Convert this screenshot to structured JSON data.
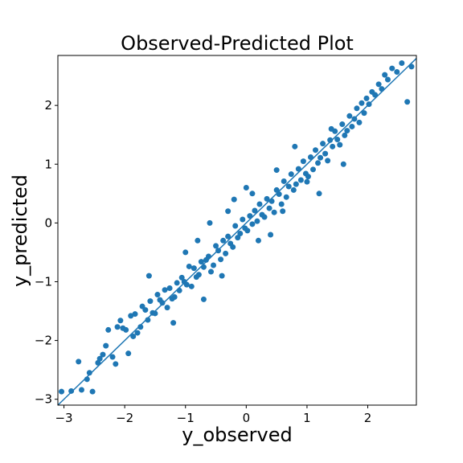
{
  "chart_data": {
    "type": "scatter",
    "title": "Observed-Predicted Plot",
    "xlabel": "y_observed",
    "ylabel": "y_predicted",
    "xlim": [
      -3.1,
      2.8
    ],
    "ylim": [
      -3.1,
      2.85
    ],
    "xticks": [
      -3,
      -2,
      -1,
      0,
      1,
      2
    ],
    "yticks": [
      -3,
      -2,
      -1,
      0,
      1,
      2
    ],
    "xtick_labels": [
      "−3",
      "−2",
      "−1",
      "0",
      "1",
      "2"
    ],
    "ytick_labels": [
      "−3",
      "−2",
      "−1",
      "0",
      "1",
      "2"
    ],
    "grid": false,
    "legend": "none",
    "reference_line": {
      "x": [
        -3.1,
        2.8
      ],
      "y": [
        -3.1,
        2.8
      ]
    },
    "series": [
      {
        "color": "#1f77b4",
        "x": [
          -3.04,
          -2.88,
          -2.76,
          -2.71,
          -2.62,
          -2.58,
          -2.53,
          -2.44,
          -2.41,
          -2.36,
          -2.31,
          -2.27,
          -2.2,
          -2.15,
          -2.12,
          -2.07,
          -2.03,
          -1.98,
          -1.94,
          -1.9,
          -1.86,
          -1.83,
          -1.79,
          -1.74,
          -1.71,
          -1.66,
          -1.62,
          -1.58,
          -1.54,
          -1.5,
          -1.46,
          -1.42,
          -1.38,
          -1.34,
          -1.3,
          -1.26,
          -1.22,
          -1.18,
          -1.14,
          -1.1,
          -1.06,
          -1.02,
          -0.98,
          -0.94,
          -0.9,
          -0.86,
          -0.82,
          -0.78,
          -0.74,
          -0.7,
          -0.66,
          -0.62,
          -0.58,
          -0.54,
          -0.5,
          -0.46,
          -0.42,
          -0.38,
          -0.34,
          -0.3,
          -0.26,
          -0.22,
          -0.18,
          -0.14,
          -0.1,
          -0.06,
          -0.02,
          0.02,
          0.06,
          0.1,
          0.14,
          0.18,
          0.22,
          0.26,
          0.3,
          0.34,
          0.38,
          0.42,
          0.46,
          0.5,
          0.54,
          0.58,
          0.62,
          0.66,
          0.7,
          0.74,
          0.78,
          0.82,
          0.86,
          0.9,
          0.94,
          0.98,
          1.02,
          1.06,
          1.1,
          1.14,
          1.18,
          1.22,
          1.26,
          1.3,
          1.34,
          1.38,
          1.42,
          1.46,
          1.5,
          1.54,
          1.58,
          1.62,
          1.66,
          1.7,
          1.74,
          1.78,
          1.82,
          1.86,
          1.9,
          1.94,
          1.98,
          2.02,
          2.07,
          2.12,
          2.18,
          2.23,
          2.28,
          2.33,
          2.4,
          2.48,
          2.56,
          2.65,
          2.72,
          -1.6,
          -1.2,
          -0.8,
          -0.4,
          0.0,
          0.4,
          0.8,
          1.2,
          1.6,
          -1.0,
          -0.2,
          0.6,
          1.4,
          -0.6,
          0.2,
          1.0,
          0.1,
          -0.3,
          0.5,
          -0.7
        ],
        "y": [
          -2.87,
          -2.86,
          -2.36,
          -2.84,
          -2.66,
          -2.55,
          -2.87,
          -2.38,
          -2.31,
          -2.24,
          -2.09,
          -1.82,
          -2.28,
          -2.4,
          -1.77,
          -1.66,
          -1.79,
          -1.82,
          -2.22,
          -1.58,
          -1.93,
          -1.55,
          -1.87,
          -1.77,
          -1.42,
          -1.48,
          -1.65,
          -1.33,
          -1.53,
          -1.54,
          -1.22,
          -1.31,
          -1.36,
          -1.14,
          -1.44,
          -1.11,
          -1.29,
          -1.26,
          -1.02,
          -1.15,
          -0.93,
          -1.0,
          -1.05,
          -0.74,
          -1.08,
          -0.77,
          -0.92,
          -0.88,
          -0.66,
          -0.75,
          -0.63,
          -0.57,
          -0.83,
          -0.72,
          -0.39,
          -0.47,
          -0.62,
          -0.3,
          -0.52,
          -0.23,
          -0.35,
          -0.41,
          -0.05,
          -0.25,
          -0.18,
          0.06,
          -0.09,
          -0.13,
          0.12,
          -0.02,
          0.21,
          0.03,
          0.32,
          0.14,
          0.1,
          0.41,
          0.25,
          0.37,
          0.18,
          0.56,
          0.49,
          0.32,
          0.71,
          0.44,
          0.62,
          0.83,
          0.56,
          0.66,
          0.92,
          0.73,
          1.05,
          0.84,
          0.79,
          1.12,
          0.91,
          1.24,
          1.02,
          1.11,
          1.35,
          1.18,
          1.06,
          1.41,
          1.3,
          1.56,
          1.42,
          1.33,
          1.68,
          1.49,
          1.57,
          1.82,
          1.64,
          1.77,
          1.95,
          1.71,
          2.04,
          1.87,
          2.12,
          2.02,
          2.23,
          2.18,
          2.36,
          2.28,
          2.52,
          2.44,
          2.63,
          2.57,
          2.72,
          2.06,
          2.66,
          -0.9,
          -1.7,
          -0.3,
          -0.9,
          0.6,
          -0.2,
          1.3,
          0.5,
          1.0,
          -0.5,
          0.4,
          0.2,
          1.6,
          0.0,
          -0.3,
          0.7,
          0.5,
          0.2,
          0.9,
          -1.3
        ]
      }
    ]
  }
}
